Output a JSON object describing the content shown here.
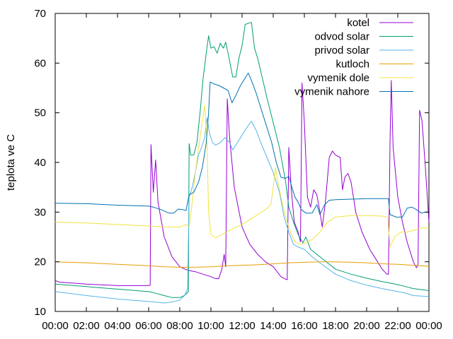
{
  "chart_data": {
    "type": "line",
    "title": "",
    "xlabel": "",
    "ylabel": "teplota ve C",
    "ylim": [
      10,
      70
    ],
    "yticks": [
      10,
      20,
      30,
      40,
      50,
      60,
      70
    ],
    "xlim": [
      0,
      24
    ],
    "xticks": [
      {
        "h": 0,
        "label": "00:00"
      },
      {
        "h": 2,
        "label": "02:00"
      },
      {
        "h": 4,
        "label": "04:00"
      },
      {
        "h": 6,
        "label": "06:00"
      },
      {
        "h": 8,
        "label": "08:00"
      },
      {
        "h": 10,
        "label": "10:00"
      },
      {
        "h": 12,
        "label": "12:00"
      },
      {
        "h": 14,
        "label": "14:00"
      },
      {
        "h": 16,
        "label": "16:00"
      },
      {
        "h": 18,
        "label": "18:00"
      },
      {
        "h": 20,
        "label": "20:00"
      },
      {
        "h": 22,
        "label": "22:00"
      },
      {
        "h": 24,
        "label": "00:00"
      }
    ],
    "grid": false,
    "legend_position": "top-right",
    "series": [
      {
        "name": "kotel",
        "color": "#9400d3",
        "points": [
          [
            0,
            16.2
          ],
          [
            0.3,
            15.9
          ],
          [
            2,
            15.5
          ],
          [
            4,
            15.2
          ],
          [
            6.0,
            15.2
          ],
          [
            6.1,
            15.3
          ],
          [
            6.15,
            43.6
          ],
          [
            6.3,
            34
          ],
          [
            6.45,
            40.5
          ],
          [
            6.6,
            32
          ],
          [
            7,
            25
          ],
          [
            7.5,
            21
          ],
          [
            8,
            19
          ],
          [
            8.5,
            18.3
          ],
          [
            9,
            18
          ],
          [
            9.5,
            17.5
          ],
          [
            10,
            17
          ],
          [
            10.3,
            16.6
          ],
          [
            10.5,
            16.6
          ],
          [
            10.7,
            18.5
          ],
          [
            10.85,
            21.5
          ],
          [
            10.95,
            19
          ],
          [
            11.05,
            52.8
          ],
          [
            11.2,
            45
          ],
          [
            11.5,
            35
          ],
          [
            12,
            27
          ],
          [
            12.5,
            23.5
          ],
          [
            13,
            21.5
          ],
          [
            13.5,
            20
          ],
          [
            14,
            19
          ],
          [
            14.5,
            17
          ],
          [
            14.8,
            16.5
          ],
          [
            14.9,
            16.4
          ],
          [
            15.0,
            43
          ],
          [
            15.15,
            35
          ],
          [
            15.35,
            28
          ],
          [
            15.6,
            26
          ],
          [
            15.75,
            24
          ],
          [
            15.85,
            56
          ],
          [
            16.0,
            48
          ],
          [
            16.2,
            33
          ],
          [
            16.4,
            31
          ],
          [
            16.6,
            34.5
          ],
          [
            16.8,
            33.5
          ],
          [
            17.0,
            30
          ],
          [
            17.15,
            27
          ],
          [
            17.35,
            32
          ],
          [
            17.6,
            41
          ],
          [
            17.8,
            42.3
          ],
          [
            18.0,
            41.5
          ],
          [
            18.3,
            41
          ],
          [
            18.45,
            34.5
          ],
          [
            18.6,
            37
          ],
          [
            18.8,
            37.8
          ],
          [
            19.0,
            36
          ],
          [
            19.3,
            30
          ],
          [
            19.7,
            26
          ],
          [
            20.2,
            22.5
          ],
          [
            20.7,
            20
          ],
          [
            21.0,
            18.5
          ],
          [
            21.3,
            17.5
          ],
          [
            21.4,
            17.5
          ],
          [
            21.5,
            44
          ],
          [
            21.58,
            56.5
          ],
          [
            21.7,
            43
          ],
          [
            22.0,
            33
          ],
          [
            22.3,
            28
          ],
          [
            22.6,
            24
          ],
          [
            23.0,
            20
          ],
          [
            23.2,
            18.8
          ],
          [
            23.3,
            19.5
          ],
          [
            23.4,
            50.5
          ],
          [
            23.55,
            48.5
          ],
          [
            23.75,
            40
          ],
          [
            24,
            28
          ]
        ]
      },
      {
        "name": "odvod solar",
        "color": "#009e73",
        "points": [
          [
            0,
            15.5
          ],
          [
            2,
            15
          ],
          [
            4,
            14.5
          ],
          [
            6,
            14
          ],
          [
            6.3,
            13.8
          ],
          [
            7,
            13.2
          ],
          [
            7.5,
            12.8
          ],
          [
            8,
            12.8
          ],
          [
            8.3,
            13.2
          ],
          [
            8.55,
            14
          ],
          [
            8.6,
            43.8
          ],
          [
            8.7,
            41.5
          ],
          [
            8.9,
            41.5
          ],
          [
            9.1,
            44
          ],
          [
            9.3,
            50
          ],
          [
            9.5,
            57
          ],
          [
            9.7,
            62
          ],
          [
            9.85,
            65.5
          ],
          [
            10,
            63
          ],
          [
            10.2,
            63.3
          ],
          [
            10.4,
            62
          ],
          [
            10.6,
            64
          ],
          [
            10.8,
            63
          ],
          [
            10.95,
            64.2
          ],
          [
            11.1,
            62
          ],
          [
            11.4,
            57.2
          ],
          [
            11.6,
            57.2
          ],
          [
            11.8,
            61
          ],
          [
            12.0,
            63.5
          ],
          [
            12.2,
            67.8
          ],
          [
            12.6,
            68.2
          ],
          [
            12.8,
            63
          ],
          [
            13.0,
            61
          ],
          [
            13.3,
            57
          ],
          [
            13.6,
            53
          ],
          [
            14,
            48
          ],
          [
            14.4,
            43
          ],
          [
            14.8,
            36
          ],
          [
            15.0,
            31
          ],
          [
            15.3,
            28
          ],
          [
            15.6,
            25.5
          ],
          [
            15.9,
            23.8
          ],
          [
            16.1,
            25
          ],
          [
            16.4,
            22.5
          ],
          [
            17,
            21
          ],
          [
            18,
            18.5
          ],
          [
            19,
            17.5
          ],
          [
            20,
            16.7
          ],
          [
            21,
            16
          ],
          [
            22,
            15.4
          ],
          [
            22.5,
            15
          ],
          [
            23,
            14.6
          ],
          [
            24,
            14.2
          ]
        ]
      },
      {
        "name": "privod solar",
        "color": "#56b4e9",
        "points": [
          [
            0,
            14
          ],
          [
            2,
            13.2
          ],
          [
            4,
            12.5
          ],
          [
            6,
            12
          ],
          [
            7,
            11.7
          ],
          [
            7.5,
            11.9
          ],
          [
            8,
            12.3
          ],
          [
            8.3,
            13.2
          ],
          [
            8.5,
            14.5
          ],
          [
            8.6,
            33
          ],
          [
            8.8,
            35
          ],
          [
            9.0,
            38
          ],
          [
            9.2,
            41.5
          ],
          [
            9.4,
            43
          ],
          [
            9.6,
            45
          ],
          [
            9.75,
            49
          ],
          [
            9.9,
            46
          ],
          [
            10.1,
            44
          ],
          [
            10.3,
            43.5
          ],
          [
            10.6,
            44
          ],
          [
            10.9,
            45
          ],
          [
            11.2,
            44
          ],
          [
            11.4,
            42.5
          ],
          [
            11.7,
            44
          ],
          [
            12.0,
            45.5
          ],
          [
            12.3,
            47
          ],
          [
            12.6,
            48.3
          ],
          [
            12.9,
            46.5
          ],
          [
            13.2,
            44
          ],
          [
            13.6,
            41
          ],
          [
            14.0,
            38
          ],
          [
            14.4,
            34
          ],
          [
            14.7,
            29
          ],
          [
            15.0,
            26
          ],
          [
            15.3,
            23.5
          ],
          [
            15.6,
            23
          ],
          [
            16,
            22.5
          ],
          [
            16.5,
            21
          ],
          [
            17,
            19.8
          ],
          [
            18,
            17.5
          ],
          [
            19,
            16.2
          ],
          [
            20,
            15.3
          ],
          [
            21,
            14.6
          ],
          [
            22,
            14
          ],
          [
            22.5,
            13.7
          ],
          [
            23,
            13.2
          ],
          [
            24,
            13
          ]
        ]
      },
      {
        "name": "kutloch",
        "color": "#e69f00",
        "points": [
          [
            0,
            20
          ],
          [
            2,
            19.8
          ],
          [
            4,
            19.5
          ],
          [
            6,
            19.2
          ],
          [
            7,
            19.0
          ],
          [
            8,
            18.9
          ],
          [
            9,
            18.9
          ],
          [
            10,
            19.0
          ],
          [
            11,
            19.2
          ],
          [
            12,
            19.3
          ],
          [
            13,
            19.4
          ],
          [
            14,
            19.6
          ],
          [
            15,
            19.8
          ],
          [
            16,
            19.9
          ],
          [
            17,
            20.0
          ],
          [
            18,
            20.0
          ],
          [
            19,
            19.9
          ],
          [
            20,
            19.8
          ],
          [
            21,
            19.6
          ],
          [
            22,
            19.5
          ],
          [
            23,
            19.3
          ],
          [
            24,
            19.1
          ]
        ]
      },
      {
        "name": "vymenik dole",
        "color": "#f0e442",
        "points": [
          [
            0,
            28
          ],
          [
            2,
            27.8
          ],
          [
            4,
            27.5
          ],
          [
            6,
            27.2
          ],
          [
            7,
            27.0
          ],
          [
            8,
            27.0
          ],
          [
            8.4,
            27.5
          ],
          [
            8.6,
            27
          ],
          [
            8.8,
            32
          ],
          [
            9.0,
            38
          ],
          [
            9.3,
            45
          ],
          [
            9.6,
            51.5
          ],
          [
            9.75,
            44
          ],
          [
            9.85,
            30
          ],
          [
            10.0,
            25.5
          ],
          [
            10.3,
            24.8
          ],
          [
            10.7,
            25.5
          ],
          [
            11,
            26
          ],
          [
            11.5,
            26.8
          ],
          [
            12,
            27.5
          ],
          [
            12.5,
            28.5
          ],
          [
            13,
            29.5
          ],
          [
            13.5,
            30.5
          ],
          [
            13.85,
            31.5
          ],
          [
            14.0,
            35
          ],
          [
            14.15,
            39
          ],
          [
            14.3,
            36
          ],
          [
            14.5,
            33
          ],
          [
            14.8,
            29
          ],
          [
            15.1,
            26
          ],
          [
            15.4,
            24
          ],
          [
            15.8,
            23.5
          ],
          [
            16.2,
            24
          ],
          [
            16.5,
            24.5
          ],
          [
            17,
            26
          ],
          [
            17.5,
            28
          ],
          [
            18,
            29
          ],
          [
            19,
            29.3
          ],
          [
            20,
            29.3
          ],
          [
            21,
            29.2
          ],
          [
            21.35,
            29
          ],
          [
            21.5,
            23
          ],
          [
            21.8,
            25
          ],
          [
            22.2,
            26
          ],
          [
            22.6,
            26
          ],
          [
            23,
            26.3
          ],
          [
            23.5,
            26.8
          ],
          [
            24,
            26.8
          ]
        ]
      },
      {
        "name": "vymenik nahore",
        "color": "#0072b2",
        "points": [
          [
            0,
            31.8
          ],
          [
            2,
            31.7
          ],
          [
            4,
            31.4
          ],
          [
            6,
            31.2
          ],
          [
            6.3,
            31
          ],
          [
            6.8,
            30.5
          ],
          [
            7.3,
            29.8
          ],
          [
            7.6,
            29.8
          ],
          [
            7.9,
            30.6
          ],
          [
            8.2,
            30.5
          ],
          [
            8.4,
            30.3
          ],
          [
            8.6,
            33.5
          ],
          [
            8.9,
            34
          ],
          [
            9.2,
            36
          ],
          [
            9.45,
            39
          ],
          [
            9.7,
            44
          ],
          [
            9.85,
            50
          ],
          [
            9.95,
            56.2
          ],
          [
            10.2,
            55.8
          ],
          [
            10.5,
            55.5
          ],
          [
            10.8,
            55
          ],
          [
            11.1,
            54.5
          ],
          [
            11.35,
            52
          ],
          [
            11.6,
            53.5
          ],
          [
            11.9,
            55.5
          ],
          [
            12.2,
            57
          ],
          [
            12.4,
            58
          ],
          [
            12.6,
            56.5
          ],
          [
            12.9,
            54
          ],
          [
            13.2,
            51
          ],
          [
            13.5,
            48
          ],
          [
            13.9,
            44
          ],
          [
            14.2,
            40
          ],
          [
            14.5,
            37
          ],
          [
            14.8,
            36.8
          ],
          [
            15.0,
            37.2
          ],
          [
            15.2,
            35
          ],
          [
            15.4,
            33
          ],
          [
            15.6,
            32
          ],
          [
            15.8,
            30.5
          ],
          [
            16.1,
            29.8
          ],
          [
            16.5,
            29.8
          ],
          [
            16.8,
            31.5
          ],
          [
            17.0,
            29.5
          ],
          [
            17.3,
            31.5
          ],
          [
            17.6,
            32.4
          ],
          [
            18,
            32.5
          ],
          [
            19,
            32.6
          ],
          [
            20,
            32.7
          ],
          [
            21,
            32.7
          ],
          [
            21.4,
            32.7
          ],
          [
            21.5,
            29.5
          ],
          [
            21.9,
            29
          ],
          [
            22.3,
            29
          ],
          [
            22.6,
            30.8
          ],
          [
            22.9,
            31
          ],
          [
            23.2,
            30.5
          ],
          [
            23.5,
            29.8
          ],
          [
            23.8,
            30
          ],
          [
            24,
            30
          ]
        ]
      }
    ]
  }
}
